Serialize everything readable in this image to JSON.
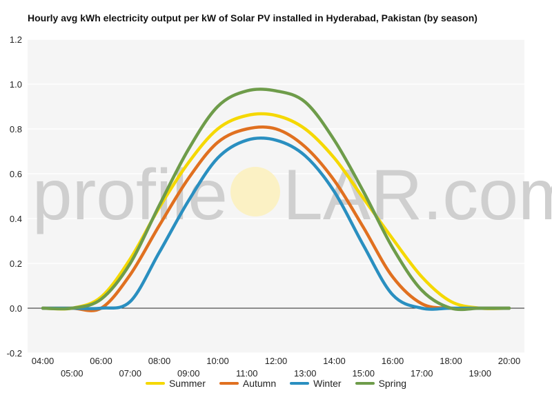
{
  "chart_data": {
    "type": "line",
    "title": "Hourly avg kWh electricity output per kW of Solar PV installed in Hyderabad, Pakistan (by season)",
    "xlabel": "",
    "ylabel": "",
    "ylim": [
      -0.2,
      1.2
    ],
    "yticks": [
      -0.2,
      0.0,
      0.2,
      0.4,
      0.6,
      0.8,
      1.0,
      1.2
    ],
    "ytick_labels": [
      "-0.2",
      "0.0",
      "0.2",
      "0.4",
      "0.6",
      "0.8",
      "1.0",
      "1.2"
    ],
    "x": [
      "04:00",
      "05:00",
      "06:00",
      "07:00",
      "08:00",
      "09:00",
      "10:00",
      "11:00",
      "12:00",
      "13:00",
      "14:00",
      "15:00",
      "16:00",
      "17:00",
      "18:00",
      "19:00",
      "20:00"
    ],
    "grid": true,
    "legend_position": "bottom",
    "series": [
      {
        "name": "Summer",
        "color": "#f5d800",
        "values": [
          0.0,
          0.0,
          0.05,
          0.22,
          0.45,
          0.65,
          0.8,
          0.86,
          0.86,
          0.8,
          0.67,
          0.49,
          0.31,
          0.14,
          0.03,
          0.0,
          0.0
        ]
      },
      {
        "name": "Autumn",
        "color": "#e07020",
        "values": [
          0.0,
          0.0,
          0.0,
          0.15,
          0.37,
          0.58,
          0.74,
          0.8,
          0.8,
          0.72,
          0.57,
          0.36,
          0.14,
          0.02,
          0.0,
          0.0,
          0.0
        ]
      },
      {
        "name": "Winter",
        "color": "#2a8fc0",
        "values": [
          0.0,
          0.0,
          0.0,
          0.03,
          0.25,
          0.48,
          0.67,
          0.75,
          0.75,
          0.68,
          0.52,
          0.28,
          0.06,
          0.0,
          0.0,
          0.0,
          0.0
        ]
      },
      {
        "name": "Spring",
        "color": "#6e9c4a",
        "values": [
          0.0,
          0.0,
          0.04,
          0.2,
          0.46,
          0.71,
          0.9,
          0.97,
          0.97,
          0.92,
          0.75,
          0.52,
          0.27,
          0.08,
          0.0,
          0.0,
          0.0
        ]
      }
    ]
  },
  "watermark": {
    "prefix": "profile",
    "suffix": "LAR.com"
  }
}
